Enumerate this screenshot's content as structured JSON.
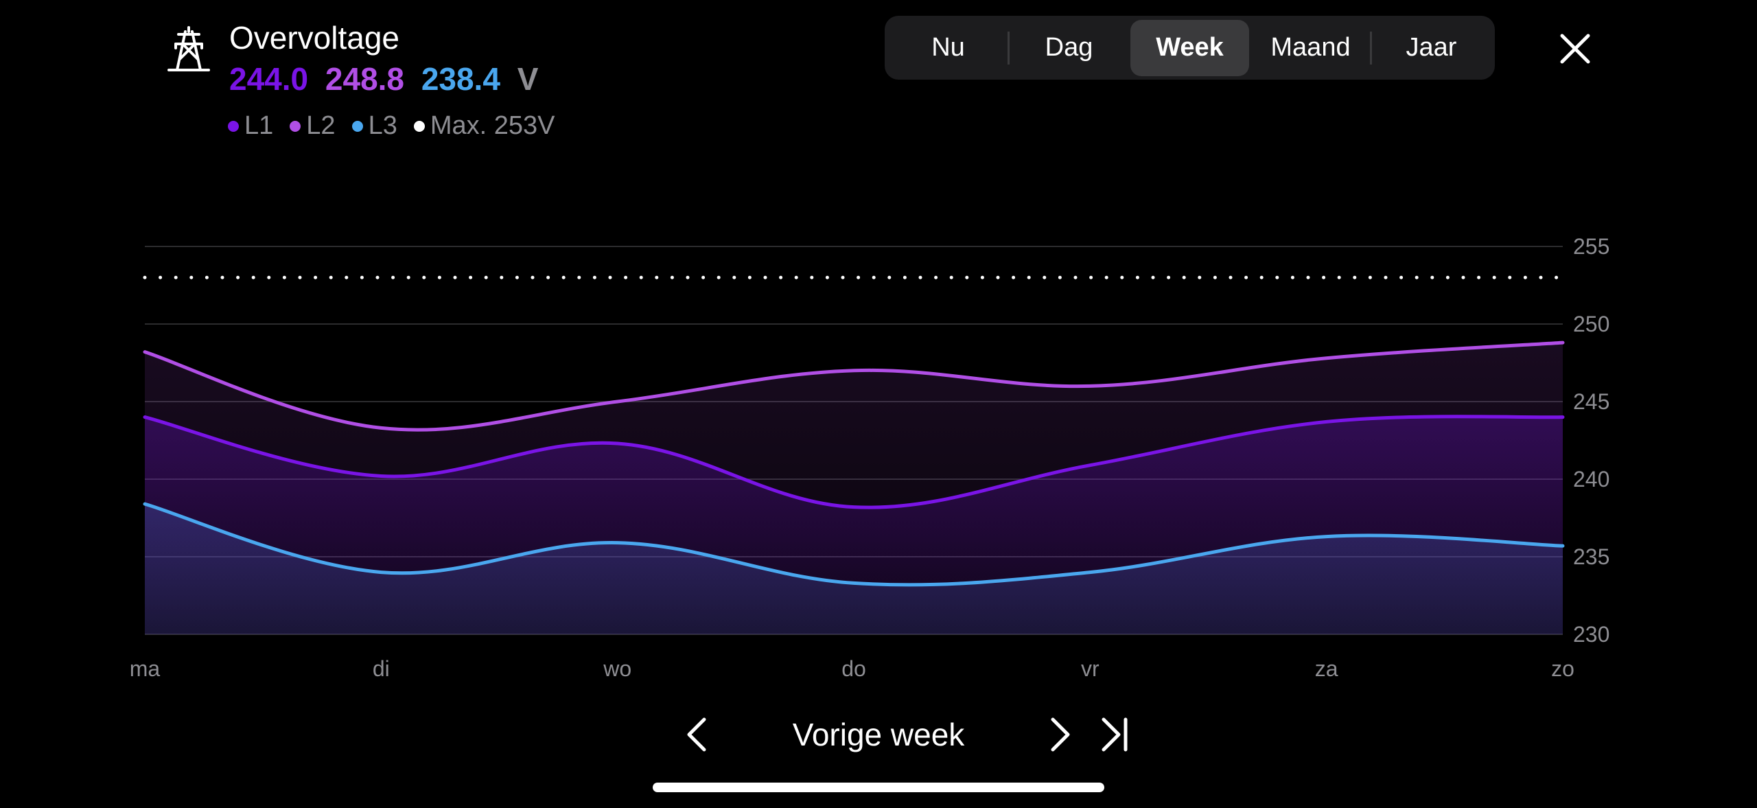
{
  "header": {
    "icon": "power-pylon-icon",
    "title": "Overvoltage",
    "values": {
      "l1": "244.0",
      "l2": "248.8",
      "l3": "238.4",
      "unit": "V"
    },
    "legend": [
      {
        "label": "L1",
        "color": "#7a14e6"
      },
      {
        "label": "L2",
        "color": "#b14fe6"
      },
      {
        "label": "L3",
        "color": "#4aa7ef"
      },
      {
        "label": "Max. 253V",
        "color": "#ffffff"
      }
    ]
  },
  "period_tabs": {
    "items": [
      "Nu",
      "Dag",
      "Week",
      "Maand",
      "Jaar"
    ],
    "selected": "Week"
  },
  "close_icon": "close-icon",
  "colors": {
    "l1": "#7a14e6",
    "l2": "#b14fe6",
    "l3": "#4aa7ef",
    "max": "#ffffff",
    "grid": "#2c2c2e",
    "axis_text": "#8e8e93",
    "segment_bg": "#1c1c1e",
    "segment_active": "#3a3a3c"
  },
  "chart_data": {
    "type": "line",
    "categories": [
      "ma",
      "di",
      "wo",
      "do",
      "vr",
      "za",
      "zo"
    ],
    "series": [
      {
        "name": "L1",
        "values": [
          244.0,
          240.2,
          242.3,
          238.2,
          240.9,
          243.7,
          244.0
        ]
      },
      {
        "name": "L2",
        "values": [
          248.2,
          243.3,
          245.0,
          247.0,
          246.0,
          247.8,
          248.8
        ]
      },
      {
        "name": "L3",
        "values": [
          238.4,
          234.0,
          235.9,
          233.3,
          234.0,
          236.3,
          235.7
        ]
      }
    ],
    "max_line": 253,
    "ylim": [
      230,
      255
    ],
    "yticks": [
      230,
      235,
      240,
      245,
      250,
      255
    ],
    "grid": true,
    "y_axis_position": "right"
  },
  "navigation": {
    "prev_icon": "chevron-left-icon",
    "label": "Vorige week",
    "next_icon": "chevron-right-icon",
    "last_icon": "skip-to-end-icon"
  }
}
